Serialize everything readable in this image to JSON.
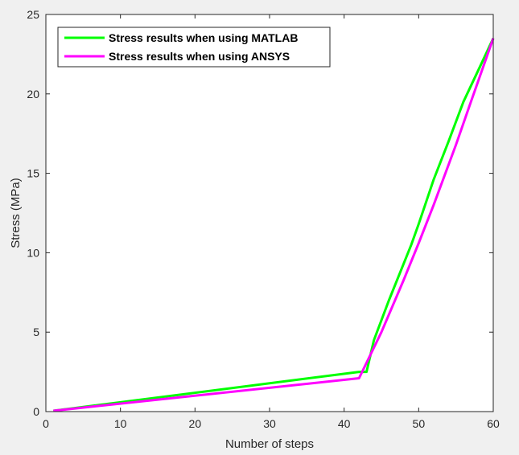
{
  "chart_data": {
    "type": "line",
    "title": "",
    "xlabel": "Number of steps",
    "ylabel": "Stress (MPa)",
    "xlim": [
      0,
      60
    ],
    "ylim": [
      0,
      25
    ],
    "xticks": [
      0,
      10,
      20,
      30,
      40,
      50,
      60
    ],
    "yticks": [
      0,
      5,
      10,
      15,
      20,
      25
    ],
    "grid": false,
    "legend_position": "top-left",
    "series": [
      {
        "name": "Stress results when using MATLAB",
        "color": "#00ff00",
        "x": [
          1,
          42,
          43,
          43,
          44,
          46,
          49,
          50,
          52,
          54,
          56,
          58,
          60
        ],
        "y": [
          0.05,
          2.5,
          2.5,
          2.5,
          4.5,
          7.0,
          10.5,
          11.8,
          14.6,
          17.0,
          19.5,
          21.5,
          23.5
        ]
      },
      {
        "name": "Stress results when using ANSYS",
        "color": "#ff00ff",
        "x": [
          1,
          42,
          45,
          48,
          50,
          52,
          55,
          57,
          60
        ],
        "y": [
          0.05,
          2.1,
          5.0,
          8.3,
          10.6,
          13.0,
          16.8,
          19.5,
          23.5
        ]
      }
    ]
  }
}
